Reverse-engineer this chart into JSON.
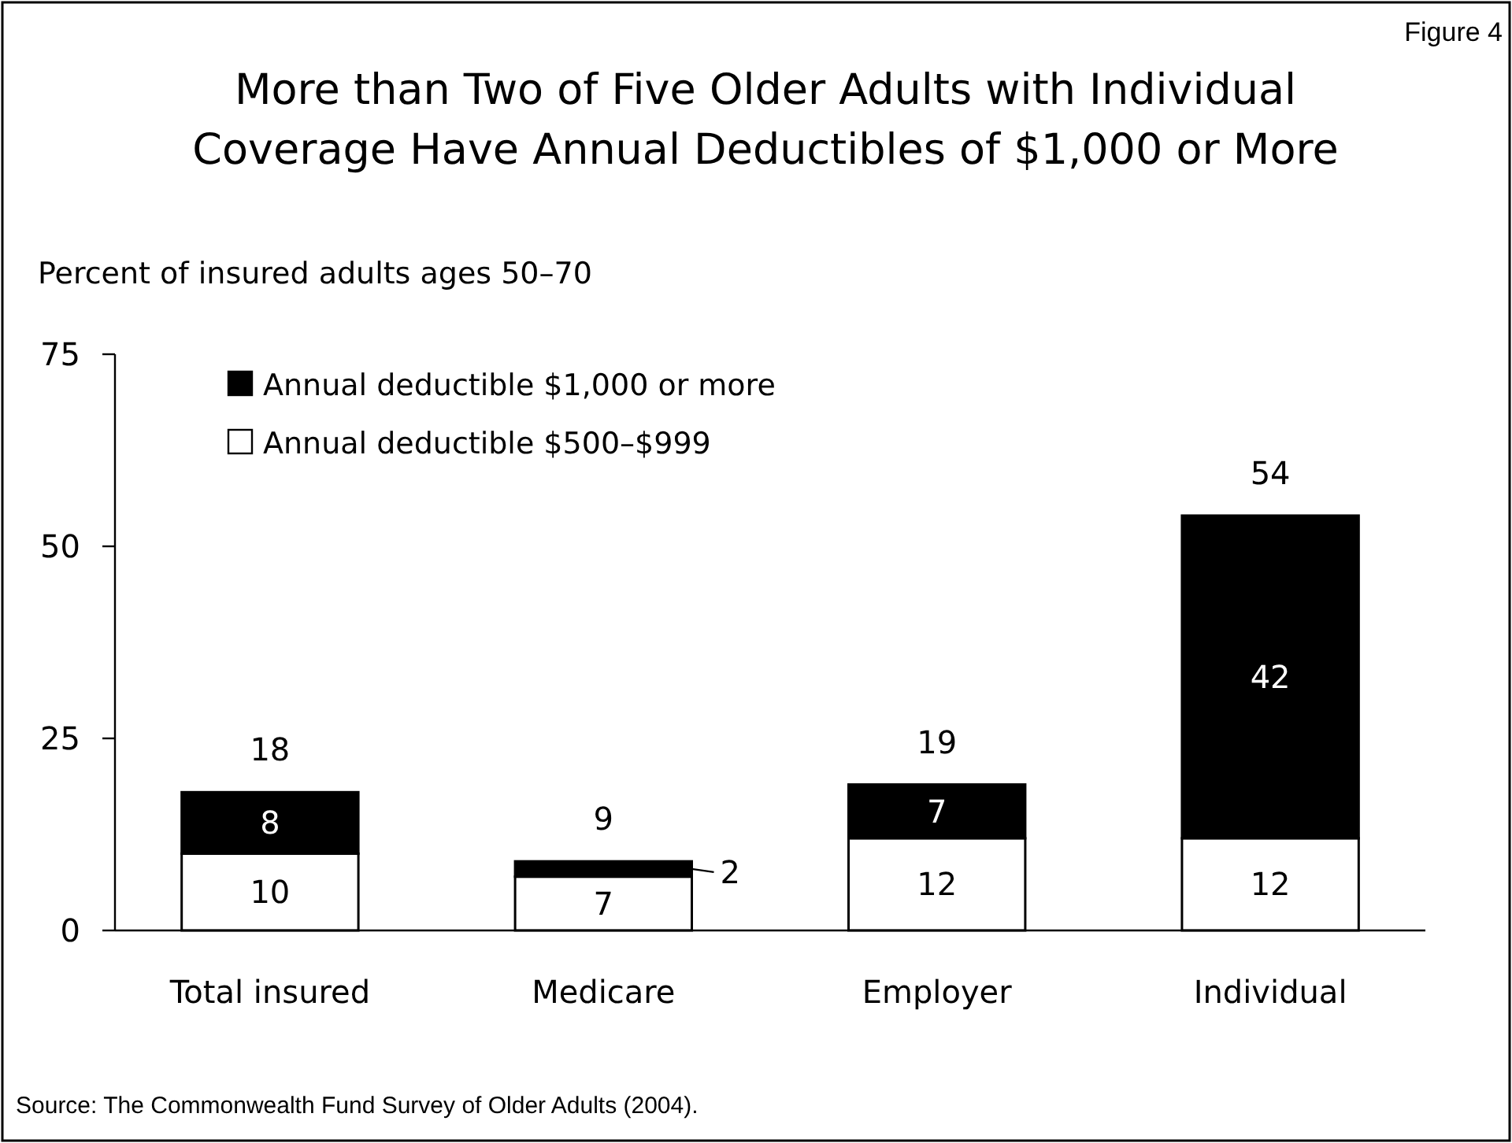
{
  "chart_data": {
    "type": "bar",
    "title": "More than Two of Five Older Adults with Individual\nCoverage Have Annual Deductibles of $1,000 or More",
    "subtitle": "Figure 4",
    "ylabel": "Percent of insured adults ages 50–70",
    "categories": [
      "Total insured",
      "Medicare",
      "Employer",
      "Individual"
    ],
    "stacked": true,
    "series": [
      {
        "name": "Annual deductible $500–$999",
        "color": "#ffffff",
        "values": [
          10,
          7,
          12,
          12
        ]
      },
      {
        "name": "Annual deductible $1,000 or more",
        "color": "#000000",
        "values": [
          8,
          2,
          7,
          42
        ]
      }
    ],
    "totals": [
      "18",
      "9",
      "19",
      "54"
    ],
    "data_labels": true,
    "ylim": [
      0,
      75
    ],
    "yticks": [
      0,
      25,
      50,
      75
    ],
    "grid": false,
    "legend": "top left",
    "annotations": [
      "Source: The Commonwealth Fund Survey of Older Adults (2004)."
    ]
  }
}
